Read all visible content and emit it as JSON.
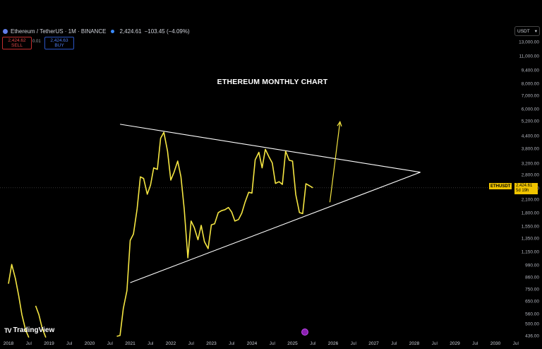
{
  "header": {
    "symbol": "Ethereum / TetherUS · 1M · BINANCE",
    "price": "2,424.61",
    "change": "−103.45 (−4.09%)"
  },
  "trade": {
    "sell_price": "2,424.62",
    "sell_label": "SELL",
    "spread": "0.01",
    "buy_price": "2,424.63",
    "buy_label": "BUY"
  },
  "currency": {
    "label": "USDT"
  },
  "price_tag": {
    "symbol": "ETHUSDT",
    "price": "2,424.61",
    "countdown": "5d 19h"
  },
  "logo": {
    "text": "TradingView"
  },
  "chart_data": {
    "type": "line",
    "title": "ETHEREUM MONTHLY CHART",
    "y_scale": "log",
    "y_ticks": [
      13000,
      11000,
      9400,
      8000,
      7000,
      6000,
      5200,
      4400,
      3800,
      3200,
      2800,
      2400,
      2100,
      1800,
      1550,
      1350,
      1150,
      990,
      860,
      750,
      650,
      560,
      500,
      436
    ],
    "y_tick_labels": [
      "13,000.00",
      "11,000.00",
      "9,400.00",
      "8,000.00",
      "7,000.00",
      "6,000.00",
      "5,200.00",
      "4,400.00",
      "3,800.00",
      "3,200.00",
      "2,800.00",
      "2,400.00",
      "2,100.00",
      "1,800.00",
      "1,550.00",
      "1,350.00",
      "1,150.00",
      "990.00",
      "860.00",
      "750.00",
      "650.00",
      "560.00",
      "500.00",
      "436.00"
    ],
    "x_ticks": [
      "2018",
      "Jul",
      "2019",
      "Jul",
      "2020",
      "Jul",
      "2021",
      "Jul",
      "2022",
      "Jul",
      "2023",
      "Jul",
      "2024",
      "Jul",
      "2025",
      "Jul",
      "2026",
      "Jul",
      "2027",
      "Jul",
      "2028",
      "Jul",
      "2029",
      "Jul",
      "2030",
      "Jul"
    ],
    "x_range": [
      2018.0,
      2030.9
    ],
    "series": [
      {
        "color": "#f5e642",
        "segments": [
          [
            [
              2018.0,
              800
            ],
            [
              2018.08,
              1000
            ],
            [
              2018.17,
              850
            ],
            [
              2018.25,
              700
            ],
            [
              2018.33,
              560
            ],
            [
              2018.42,
              470
            ],
            [
              2018.5,
              430
            ]
          ],
          [
            [
              2018.67,
              620
            ],
            [
              2018.75,
              560
            ],
            [
              2018.83,
              480
            ],
            [
              2018.92,
              430
            ]
          ],
          [
            [
              2020.67,
              436
            ],
            [
              2020.75,
              440
            ],
            [
              2020.83,
              600
            ],
            [
              2020.92,
              740
            ],
            [
              2021.0,
              1320
            ],
            [
              2021.08,
              1420
            ],
            [
              2021.17,
              1900
            ],
            [
              2021.25,
              2750
            ],
            [
              2021.33,
              2700
            ],
            [
              2021.42,
              2250
            ],
            [
              2021.5,
              2500
            ],
            [
              2021.58,
              3050
            ],
            [
              2021.67,
              3000
            ],
            [
              2021.75,
              4300
            ],
            [
              2021.83,
              4600
            ],
            [
              2021.92,
              3700
            ],
            [
              2022.0,
              2650
            ],
            [
              2022.08,
              2900
            ],
            [
              2022.17,
              3300
            ],
            [
              2022.25,
              2750
            ],
            [
              2022.33,
              1900
            ],
            [
              2022.42,
              1080
            ],
            [
              2022.5,
              1650
            ],
            [
              2022.58,
              1530
            ],
            [
              2022.67,
              1330
            ],
            [
              2022.75,
              1570
            ],
            [
              2022.83,
              1300
            ],
            [
              2022.92,
              1200
            ],
            [
              2023.0,
              1580
            ],
            [
              2023.08,
              1600
            ],
            [
              2023.17,
              1820
            ],
            [
              2023.25,
              1860
            ],
            [
              2023.33,
              1880
            ],
            [
              2023.42,
              1930
            ],
            [
              2023.5,
              1830
            ],
            [
              2023.58,
              1650
            ],
            [
              2023.67,
              1680
            ],
            [
              2023.75,
              1810
            ],
            [
              2023.83,
              2050
            ],
            [
              2023.92,
              2300
            ],
            [
              2024.0,
              2280
            ],
            [
              2024.08,
              3350
            ],
            [
              2024.17,
              3650
            ],
            [
              2024.25,
              3050
            ],
            [
              2024.33,
              3780
            ],
            [
              2024.42,
              3460
            ],
            [
              2024.5,
              3230
            ],
            [
              2024.58,
              2550
            ],
            [
              2024.67,
              2600
            ],
            [
              2024.75,
              2520
            ],
            [
              2024.83,
              3700
            ],
            [
              2024.92,
              3330
            ],
            [
              2025.0,
              3300
            ],
            [
              2025.08,
              2240
            ],
            [
              2025.17,
              1820
            ],
            [
              2025.25,
              1800
            ],
            [
              2025.33,
              2540
            ],
            [
              2025.42,
              2480
            ],
            [
              2025.5,
              2424
            ]
          ]
        ]
      }
    ],
    "trendlines": [
      {
        "color": "#ffffff",
        "points": [
          [
            2020.75,
            5050
          ],
          [
            2028.15,
            2900
          ]
        ]
      },
      {
        "color": "#ffffff",
        "points": [
          [
            2021.0,
            810
          ],
          [
            2028.15,
            2900
          ]
        ]
      }
    ],
    "arrow": {
      "color": "#f5e642",
      "from": [
        2025.92,
        2050
      ],
      "to": [
        2026.17,
        5200
      ]
    },
    "last_price_line": 2424.61
  }
}
